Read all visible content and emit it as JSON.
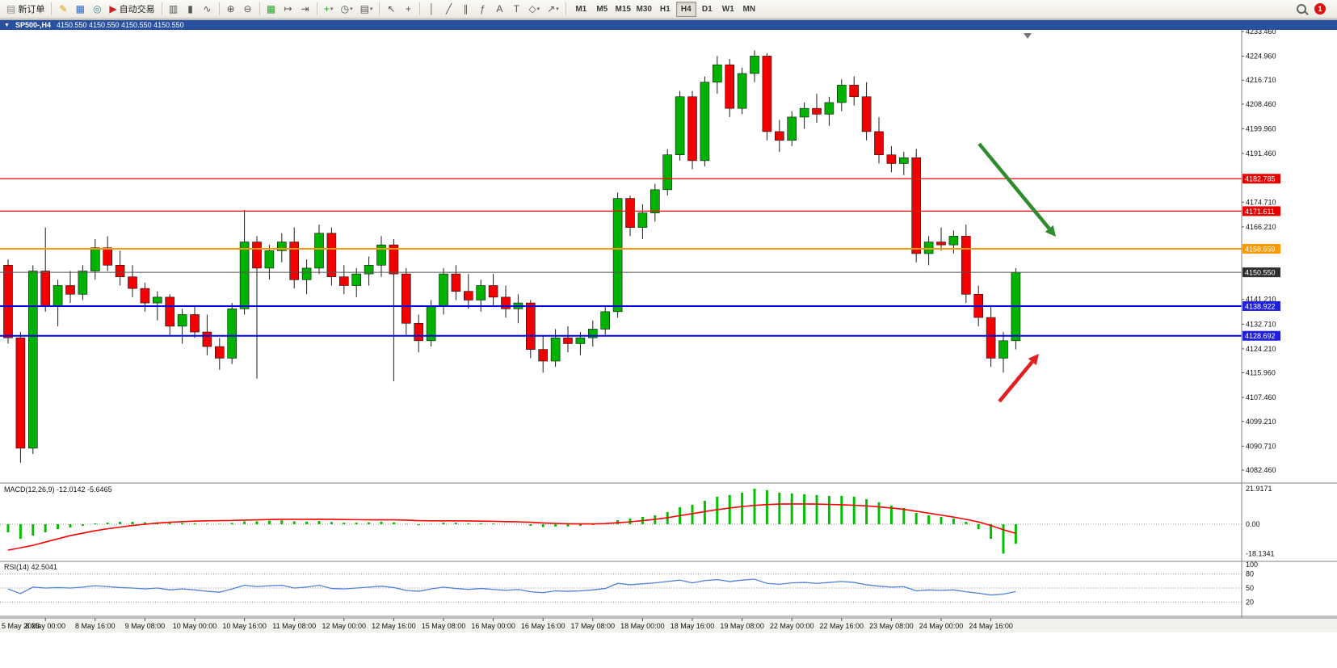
{
  "toolbar": {
    "new_order_label": "新订单",
    "autotrading_label": "自动交易",
    "timeframes": [
      "M1",
      "M5",
      "M15",
      "M30",
      "H1",
      "H4",
      "D1",
      "W1",
      "MN"
    ],
    "active_timeframe": "H4",
    "notification_count": "1"
  },
  "window": {
    "title_symbol": "SP500-,H4",
    "title_ohlc": "4150.550 4150.550 4150.550 4150.550"
  },
  "icons": {
    "window_menu": "▼",
    "new_order_glyph": "▤",
    "metaeditor": "✎",
    "market_watch": "▦",
    "navigator": "◎",
    "autotrading": "▶",
    "chart_bars": "▥",
    "chart_candles": "▮",
    "chart_line": "∿",
    "zoom_in": "⊕",
    "zoom_out": "⊖",
    "tile_windows": "▦",
    "auto_scroll": "↦",
    "chart_shift": "⇥",
    "indicators": "+",
    "periods": "◷",
    "templates": "▤",
    "cursor": "↖",
    "crosshair": "+",
    "vline": "│",
    "trendline": "╱",
    "channel": "∥",
    "fibonacci": "ƒ",
    "text": "A",
    "text_label": "T",
    "shapes": "◇",
    "arrow_tool": "↗",
    "dropdown": "▾"
  },
  "chart_data": {
    "type": "candlestick",
    "symbol": "SP500-",
    "timeframe": "H4",
    "price_range": {
      "min": 4082.46,
      "max": 4233.46
    },
    "colors": {
      "up": "#00B200",
      "down": "#F20000",
      "wick": "#1c1c1c",
      "macd_hist": "#00C000",
      "macd_signal": "#FF0000",
      "rsi_line": "#4f81d8"
    },
    "candles": [
      [
        4153,
        4155,
        4126,
        4128
      ],
      [
        4128,
        4130,
        4085,
        4090
      ],
      [
        4090,
        4153,
        4088,
        4151
      ],
      [
        4151,
        4166,
        4137,
        4139
      ],
      [
        4139,
        4148,
        4132,
        4146
      ],
      [
        4146,
        4151,
        4140,
        4143
      ],
      [
        4143,
        4153,
        4141,
        4151
      ],
      [
        4151,
        4162,
        4148,
        4159
      ],
      [
        4159,
        4163,
        4151,
        4153
      ],
      [
        4153,
        4158,
        4146,
        4149
      ],
      [
        4149,
        4153,
        4142,
        4145
      ],
      [
        4145,
        4147,
        4137,
        4140
      ],
      [
        4140,
        4144,
        4134,
        4142
      ],
      [
        4142,
        4143,
        4129,
        4132
      ],
      [
        4132,
        4138,
        4126,
        4136
      ],
      [
        4136,
        4139,
        4128,
        4130
      ],
      [
        4130,
        4136,
        4122,
        4125
      ],
      [
        4125,
        4128,
        4117,
        4121
      ],
      [
        4121,
        4140,
        4119,
        4138
      ],
      [
        4138,
        4172,
        4136,
        4161
      ],
      [
        4161,
        4163,
        4114,
        4152
      ],
      [
        4152,
        4160,
        4148,
        4158
      ],
      [
        4158,
        4164,
        4154,
        4161
      ],
      [
        4161,
        4166,
        4145,
        4148
      ],
      [
        4148,
        4155,
        4143,
        4152
      ],
      [
        4152,
        4167,
        4150,
        4164
      ],
      [
        4164,
        4166,
        4146,
        4149
      ],
      [
        4149,
        4153,
        4143,
        4146
      ],
      [
        4146,
        4152,
        4142,
        4150
      ],
      [
        4150,
        4156,
        4146,
        4153
      ],
      [
        4153,
        4163,
        4149,
        4160
      ],
      [
        4160,
        4162,
        4113,
        4150
      ],
      [
        4150,
        4152,
        4129,
        4133
      ],
      [
        4133,
        4136,
        4123,
        4127
      ],
      [
        4127,
        4141,
        4125,
        4139
      ],
      [
        4139,
        4152,
        4136,
        4150
      ],
      [
        4150,
        4153,
        4141,
        4144
      ],
      [
        4144,
        4150,
        4138,
        4141
      ],
      [
        4141,
        4148,
        4137,
        4146
      ],
      [
        4146,
        4150,
        4139,
        4142
      ],
      [
        4142,
        4146,
        4135,
        4138
      ],
      [
        4138,
        4143,
        4133,
        4140
      ],
      [
        4140,
        4141,
        4121,
        4124
      ],
      [
        4124,
        4129,
        4116,
        4120
      ],
      [
        4120,
        4131,
        4118,
        4128
      ],
      [
        4128,
        4132,
        4123,
        4126
      ],
      [
        4126,
        4130,
        4122,
        4128
      ],
      [
        4128,
        4134,
        4125,
        4131
      ],
      [
        4131,
        4139,
        4129,
        4137
      ],
      [
        4137,
        4178,
        4135,
        4176
      ],
      [
        4176,
        4177,
        4163,
        4166
      ],
      [
        4166,
        4174,
        4162,
        4171
      ],
      [
        4171,
        4181,
        4168,
        4179
      ],
      [
        4179,
        4193,
        4177,
        4191
      ],
      [
        4191,
        4213,
        4189,
        4211
      ],
      [
        4211,
        4213,
        4186,
        4189
      ],
      [
        4189,
        4218,
        4187,
        4216
      ],
      [
        4216,
        4225,
        4212,
        4222
      ],
      [
        4222,
        4224,
        4204,
        4207
      ],
      [
        4207,
        4221,
        4205,
        4219
      ],
      [
        4219,
        4227,
        4216,
        4225
      ],
      [
        4225,
        4226,
        4196,
        4199
      ],
      [
        4199,
        4203,
        4192,
        4196
      ],
      [
        4196,
        4206,
        4194,
        4204
      ],
      [
        4204,
        4209,
        4200,
        4207
      ],
      [
        4207,
        4212,
        4202,
        4205
      ],
      [
        4205,
        4211,
        4201,
        4209
      ],
      [
        4209,
        4217,
        4206,
        4215
      ],
      [
        4215,
        4218,
        4208,
        4211
      ],
      [
        4211,
        4216,
        4196,
        4199
      ],
      [
        4199,
        4204,
        4188,
        4191
      ],
      [
        4191,
        4194,
        4185,
        4188
      ],
      [
        4188,
        4192,
        4184,
        4190
      ],
      [
        4190,
        4193,
        4154,
        4157
      ],
      [
        4157,
        4163,
        4153,
        4161
      ],
      [
        4161,
        4166,
        4158,
        4160
      ],
      [
        4160,
        4165,
        4157,
        4163
      ],
      [
        4163,
        4167,
        4140,
        4143
      ],
      [
        4143,
        4146,
        4132,
        4135
      ],
      [
        4135,
        4139,
        4118,
        4121
      ],
      [
        4121,
        4130,
        4116,
        4127
      ],
      [
        4127,
        4152,
        4124,
        4150.55
      ]
    ],
    "axis_labels": [
      4233.46,
      4224.96,
      4216.71,
      4208.46,
      4199.96,
      4191.46,
      4174.71,
      4166.21,
      4141.21,
      4132.71,
      4124.21,
      4115.96,
      4107.46,
      4099.21,
      4090.71,
      4082.46
    ],
    "hlines": [
      {
        "price": 4182.785,
        "label": "4182.785",
        "color": "#FF0000",
        "badge": "#E80000",
        "width": 1.2
      },
      {
        "price": 4171.611,
        "label": "4171.611",
        "color": "#FF0000",
        "badge": "#E80000",
        "width": 1.2
      },
      {
        "price": 4158.659,
        "label": "4158.659",
        "color": "#FF9900",
        "badge": "#FF9900",
        "width": 2
      },
      {
        "price": 4138.922,
        "label": "4138.922",
        "color": "#0000E0",
        "badge": "#2121DD",
        "width": 2
      },
      {
        "price": 4128.692,
        "label": "4128.692",
        "color": "#0000E0",
        "badge": "#2121DD",
        "width": 2
      }
    ],
    "current_price": {
      "price": 4150.55,
      "label": "4150.550",
      "line_color": "#555555",
      "badge": "#2F2F2F"
    },
    "time_labels": [
      {
        "text": "5 May 2023",
        "bar": 0
      },
      {
        "text": "8 May 00:00",
        "bar": 3
      },
      {
        "text": "8 May 16:00",
        "bar": 7
      },
      {
        "text": "9 May 08:00",
        "bar": 11
      },
      {
        "text": "10 May 00:00",
        "bar": 15
      },
      {
        "text": "10 May 16:00",
        "bar": 19
      },
      {
        "text": "11 May 08:00",
        "bar": 23
      },
      {
        "text": "12 May 00:00",
        "bar": 27
      },
      {
        "text": "12 May 16:00",
        "bar": 31
      },
      {
        "text": "15 May 08:00",
        "bar": 35
      },
      {
        "text": "16 May 00:00",
        "bar": 39
      },
      {
        "text": "16 May 16:00",
        "bar": 43
      },
      {
        "text": "17 May 08:00",
        "bar": 47
      },
      {
        "text": "18 May 00:00",
        "bar": 51
      },
      {
        "text": "18 May 16:00",
        "bar": 55
      },
      {
        "text": "19 May 08:00",
        "bar": 59
      },
      {
        "text": "22 May 00:00",
        "bar": 63
      },
      {
        "text": "22 May 16:00",
        "bar": 67
      },
      {
        "text": "23 May 08:00",
        "bar": 71
      },
      {
        "text": "24 May 00:00",
        "bar": 75
      },
      {
        "text": "24 May 16:00",
        "bar": 79
      }
    ],
    "macd": {
      "label": "MACD(12,26,9) -12.0142 -5.6465",
      "axis_labels": [
        "21.9171",
        "0.00",
        "-18.1341"
      ],
      "max": 21.9171,
      "min": -18.1341,
      "histogram": [
        -5,
        -9,
        -7,
        -5,
        -3,
        -2,
        -1,
        0.5,
        1,
        1.5,
        1.5,
        1.2,
        1.2,
        0.8,
        0.8,
        0.6,
        0.3,
        0.2,
        0.8,
        1.8,
        1.8,
        2.2,
        2.4,
        1.8,
        1.6,
        2,
        1.4,
        1,
        1,
        1.2,
        1.6,
        1.2,
        0.2,
        -0.6,
        0.2,
        1,
        1,
        0.6,
        0.6,
        0.4,
        0,
        0,
        -1,
        -1.8,
        -1.4,
        -1.4,
        -1,
        -0.5,
        0.2,
        2.5,
        3.5,
        4.5,
        5.5,
        7.5,
        10.5,
        12,
        14.5,
        17,
        18,
        19.5,
        21.9171,
        21,
        19.5,
        19,
        18.5,
        18,
        17.5,
        17.5,
        17,
        15.5,
        13.5,
        11.5,
        10,
        7,
        5.5,
        4.5,
        3.5,
        1.5,
        -3,
        -9,
        -18.1341,
        -12.0142
      ],
      "signal": [
        -16,
        -14.5,
        -13,
        -11,
        -9,
        -7,
        -5.5,
        -4,
        -2.8,
        -1.8,
        -0.8,
        0,
        0.7,
        1.2,
        1.6,
        1.9,
        2.1,
        2.2,
        2.3,
        2.5,
        2.7,
        2.9,
        3,
        3,
        3,
        3.1,
        3,
        2.9,
        2.8,
        2.7,
        2.7,
        2.7,
        2.5,
        2.2,
        2.1,
        2.1,
        2.1,
        2,
        1.9,
        1.8,
        1.6,
        1.5,
        1.2,
        0.8,
        0.5,
        0.3,
        0.2,
        0.2,
        0.4,
        0.9,
        1.5,
        2.2,
        3,
        4,
        5.3,
        6.5,
        7.8,
        9,
        10,
        10.9,
        11.6,
        12.1,
        12.4,
        12.5,
        12.5,
        12.4,
        12.2,
        12,
        11.7,
        11.3,
        10.7,
        10,
        9.2,
        8,
        6.8,
        5.6,
        4.4,
        3,
        1.4,
        -0.8,
        -3.4,
        -5.6465
      ]
    },
    "rsi": {
      "label": "RSI(14) 42.5041",
      "axis_labels": [
        "100",
        "80",
        "50",
        "20"
      ],
      "levels": [
        80,
        50,
        20
      ],
      "values": [
        48,
        38,
        52,
        50,
        51,
        50,
        52,
        55,
        53,
        51,
        50,
        48,
        50,
        46,
        48,
        46,
        43,
        41,
        48,
        56,
        53,
        55,
        56,
        50,
        52,
        56,
        49,
        48,
        50,
        52,
        54,
        51,
        45,
        43,
        48,
        52,
        49,
        47,
        49,
        47,
        45,
        47,
        42,
        40,
        44,
        43,
        44,
        46,
        49,
        60,
        57,
        59,
        61,
        64,
        67,
        61,
        66,
        68,
        64,
        67,
        69,
        60,
        58,
        61,
        62,
        60,
        62,
        64,
        62,
        57,
        54,
        52,
        53,
        44,
        46,
        45,
        46,
        42,
        39,
        35,
        37,
        42.5
      ]
    },
    "annotations": [
      {
        "type": "arrow",
        "color": "#2E8B2E",
        "from": [
          1212,
          177
        ],
        "to": [
          1307,
          292
        ]
      },
      {
        "type": "arrow",
        "color": "#E02020",
        "from": [
          1237,
          496
        ],
        "to": [
          1286,
          437
        ]
      }
    ]
  }
}
